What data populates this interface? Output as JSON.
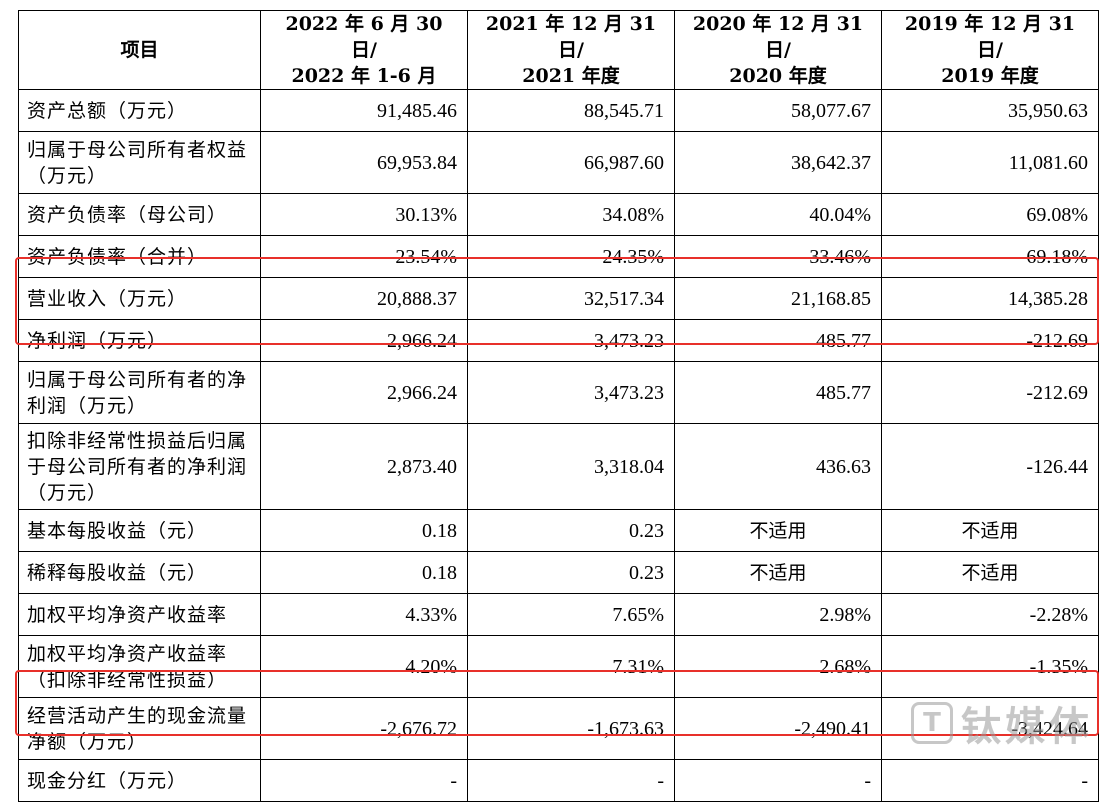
{
  "table": {
    "headers": [
      "项目",
      "2022 年 6 月 30 日/ 2022 年 1-6 月",
      "2021 年 12 月 31 日/ 2021 年度",
      "2020 年 12 月 31 日/ 2020 年度",
      "2019 年 12 月 31 日/ 2019 年度"
    ],
    "header_lines": [
      [
        "项目",
        ""
      ],
      [
        "2022 年 6 月 30 日/",
        "2022 年 1-6 月"
      ],
      [
        "2021 年 12 月 31 日/",
        "2021 年度"
      ],
      [
        "2020 年 12 月 31 日/",
        "2020 年度"
      ],
      [
        "2019 年 12 月 31 日/",
        "2019 年度"
      ]
    ],
    "rows": [
      {
        "label": "资产总额（万元）",
        "values": [
          "91,485.46",
          "88,545.71",
          "58,077.67",
          "35,950.63"
        ]
      },
      {
        "label": "归属于母公司所有者权益（万元）",
        "values": [
          "69,953.84",
          "66,987.60",
          "38,642.37",
          "11,081.60"
        ]
      },
      {
        "label": "资产负债率（母公司）",
        "values": [
          "30.13%",
          "34.08%",
          "40.04%",
          "69.08%"
        ]
      },
      {
        "label": "资产负债率（合并）",
        "values": [
          "23.54%",
          "24.35%",
          "33.46%",
          "69.18%"
        ]
      },
      {
        "label": "营业收入（万元）",
        "values": [
          "20,888.37",
          "32,517.34",
          "21,168.85",
          "14,385.28"
        ]
      },
      {
        "label": "净利润（万元）",
        "values": [
          "2,966.24",
          "3,473.23",
          "485.77",
          "-212.69"
        ]
      },
      {
        "label": "归属于母公司所有者的净利润（万元）",
        "values": [
          "2,966.24",
          "3,473.23",
          "485.77",
          "-212.69"
        ]
      },
      {
        "label": "扣除非经常性损益后归属于母公司所有者的净利润（万元）",
        "values": [
          "2,873.40",
          "3,318.04",
          "436.63",
          "-126.44"
        ]
      },
      {
        "label": "基本每股收益（元）",
        "values": [
          "0.18",
          "0.23",
          "不适用",
          "不适用"
        ]
      },
      {
        "label": "稀释每股收益（元）",
        "values": [
          "0.18",
          "0.23",
          "不适用",
          "不适用"
        ]
      },
      {
        "label": "加权平均净资产收益率",
        "values": [
          "4.33%",
          "7.65%",
          "2.98%",
          "-2.28%"
        ]
      },
      {
        "label": "加权平均净资产收益率（扣除非经常性损益）",
        "values": [
          "4.20%",
          "7.31%",
          "2.68%",
          "-1.35%"
        ]
      },
      {
        "label": "经营活动产生的现金流量净额（万元）",
        "values": [
          "-2,676.72",
          "-1,673.63",
          "-2,490.41",
          "-3,424.64"
        ]
      },
      {
        "label": "现金分红（万元）",
        "values": [
          "-",
          "-",
          "-",
          "-"
        ]
      }
    ]
  },
  "highlight_color": "#e8302a",
  "watermark": {
    "logo_glyph": "T",
    "text": "钛媒体"
  }
}
